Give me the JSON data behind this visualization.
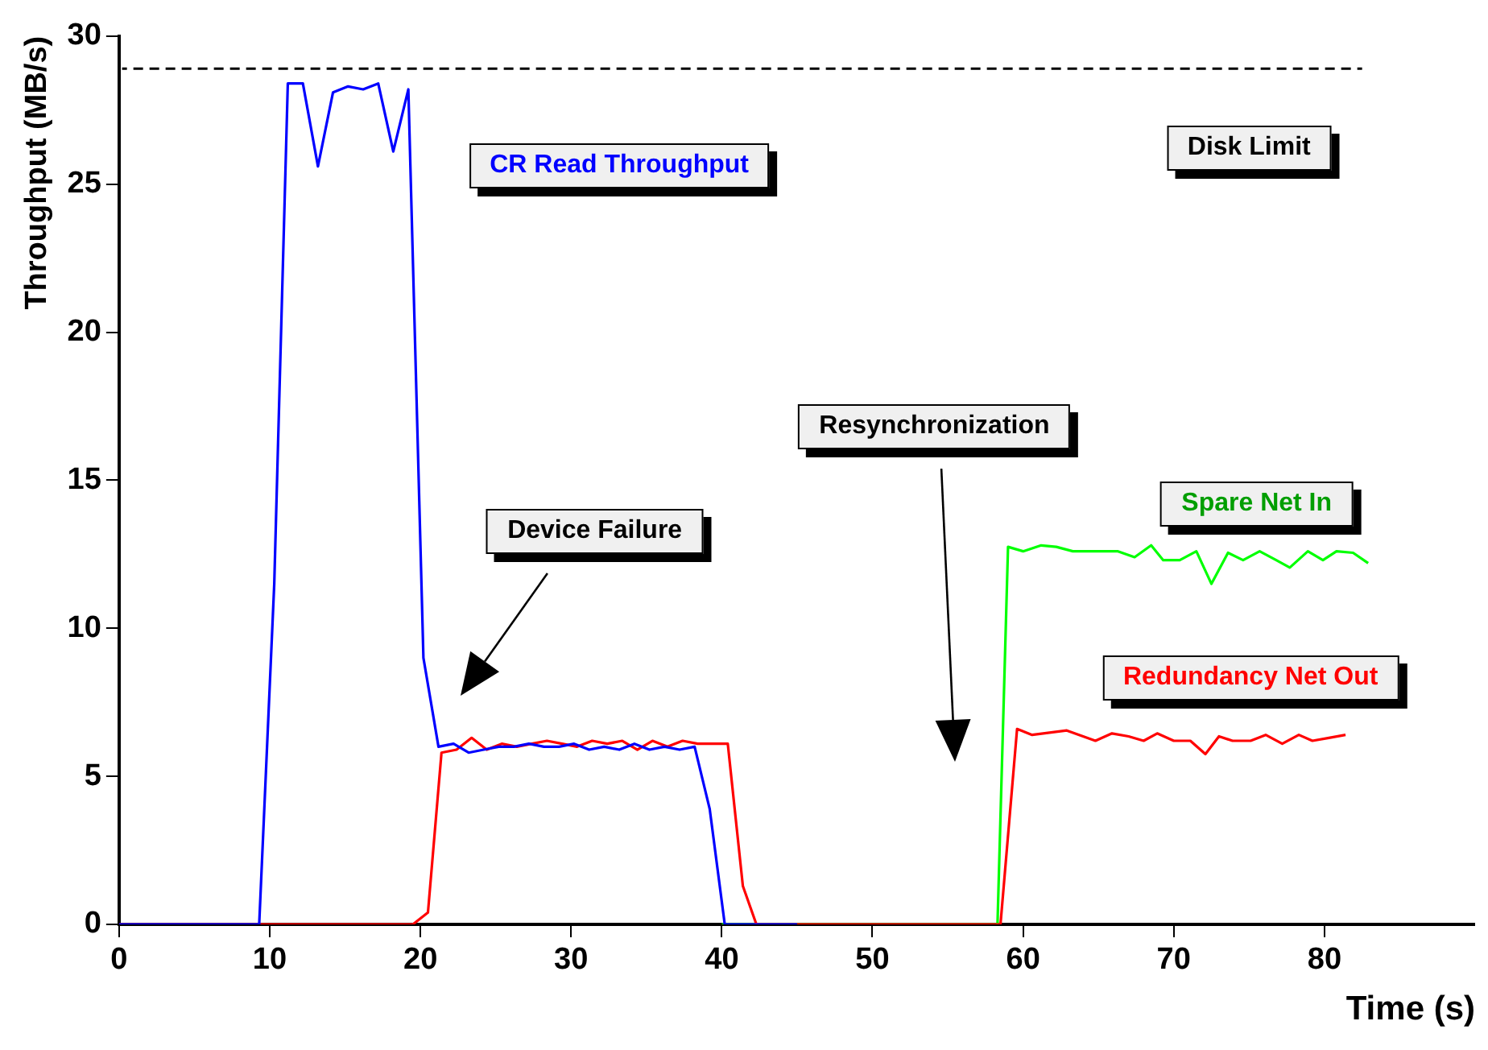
{
  "chart_data": {
    "type": "line",
    "xlabel": "Time (s)",
    "ylabel": "Throughput (MB/s)",
    "xlim": [
      0,
      90
    ],
    "xticks": [
      0,
      10,
      20,
      30,
      40,
      50,
      60,
      70,
      80
    ],
    "ylim": [
      0,
      30
    ],
    "yticks": [
      0,
      5,
      10,
      15,
      20,
      25,
      30
    ],
    "grid": false,
    "legend": false,
    "marker": "none",
    "series": [
      {
        "name": "CR Read Throughput",
        "color": "#0000ff",
        "x": [
          0,
          9.3,
          10.3,
          11.2,
          12.2,
          13.2,
          14.2,
          15.2,
          16.2,
          17.2,
          18.2,
          19.2,
          20.2,
          21.2,
          22.2,
          23.2,
          24.2,
          25.2,
          26.2,
          27.2,
          28.2,
          29.2,
          30.2,
          31.2,
          32.2,
          33.2,
          34.2,
          35.2,
          36.2,
          37.2,
          38.2,
          39.2,
          40.2,
          45
        ],
        "values": [
          0,
          0,
          11.5,
          28.4,
          28.4,
          25.6,
          28.1,
          28.3,
          28.2,
          28.4,
          26.1,
          28.2,
          9.0,
          6.0,
          6.1,
          5.8,
          5.9,
          6.0,
          6.0,
          6.1,
          6.0,
          6.0,
          6.1,
          5.9,
          6.0,
          5.9,
          6.1,
          5.9,
          6.0,
          5.9,
          6.0,
          3.9,
          0,
          0
        ]
      },
      {
        "name": "Redundancy Net Out",
        "color": "#ff0000",
        "x": [
          0,
          19.5,
          20.5,
          21.4,
          22.4,
          23.4,
          24.4,
          25.4,
          26.4,
          27.4,
          28.4,
          29.4,
          30.4,
          31.4,
          32.4,
          33.4,
          34.4,
          35.4,
          36.4,
          37.4,
          38.4,
          39.4,
          40.4,
          41.4,
          42.3,
          58.5,
          59.6,
          60.6,
          62.9,
          64.8,
          65.9,
          67,
          68,
          68.9,
          70,
          71.1,
          72.1,
          73,
          73.9,
          75.1,
          76.1,
          77.2,
          78.3,
          79.2,
          80.3,
          81.4
        ],
        "values": [
          0,
          0,
          0.4,
          5.8,
          5.9,
          6.3,
          5.9,
          6.1,
          6.0,
          6.1,
          6.2,
          6.1,
          6.0,
          6.2,
          6.1,
          6.2,
          5.9,
          6.2,
          6.0,
          6.2,
          6.1,
          6.1,
          6.1,
          1.3,
          0,
          0,
          6.6,
          6.4,
          6.55,
          6.2,
          6.45,
          6.35,
          6.2,
          6.45,
          6.2,
          6.2,
          5.75,
          6.35,
          6.2,
          6.2,
          6.4,
          6.1,
          6.4,
          6.2,
          6.3,
          6.4
        ]
      },
      {
        "name": "Spare Net In",
        "color": "#00ff00",
        "x": [
          40,
          58.3,
          59,
          60,
          61.2,
          62.2,
          63.3,
          66.3,
          67.4,
          68.5,
          69.3,
          70.4,
          71.5,
          72.5,
          73.6,
          74.6,
          75.7,
          76.8,
          77.7,
          78.9,
          79.9,
          80.8,
          81.9,
          82.9
        ],
        "values": [
          0,
          0,
          12.75,
          12.6,
          12.8,
          12.75,
          12.6,
          12.6,
          12.4,
          12.8,
          12.3,
          12.3,
          12.6,
          11.5,
          12.55,
          12.3,
          12.6,
          12.3,
          12.05,
          12.6,
          12.3,
          12.6,
          12.55,
          12.2
        ]
      },
      {
        "name": "Disk Limit",
        "color": "#000000",
        "line_style": "dashed",
        "x": [
          0.2,
          82.5
        ],
        "values": [
          28.9,
          28.9
        ]
      }
    ],
    "annotations": [
      "Device Failure",
      "Resynchronization"
    ]
  }
}
